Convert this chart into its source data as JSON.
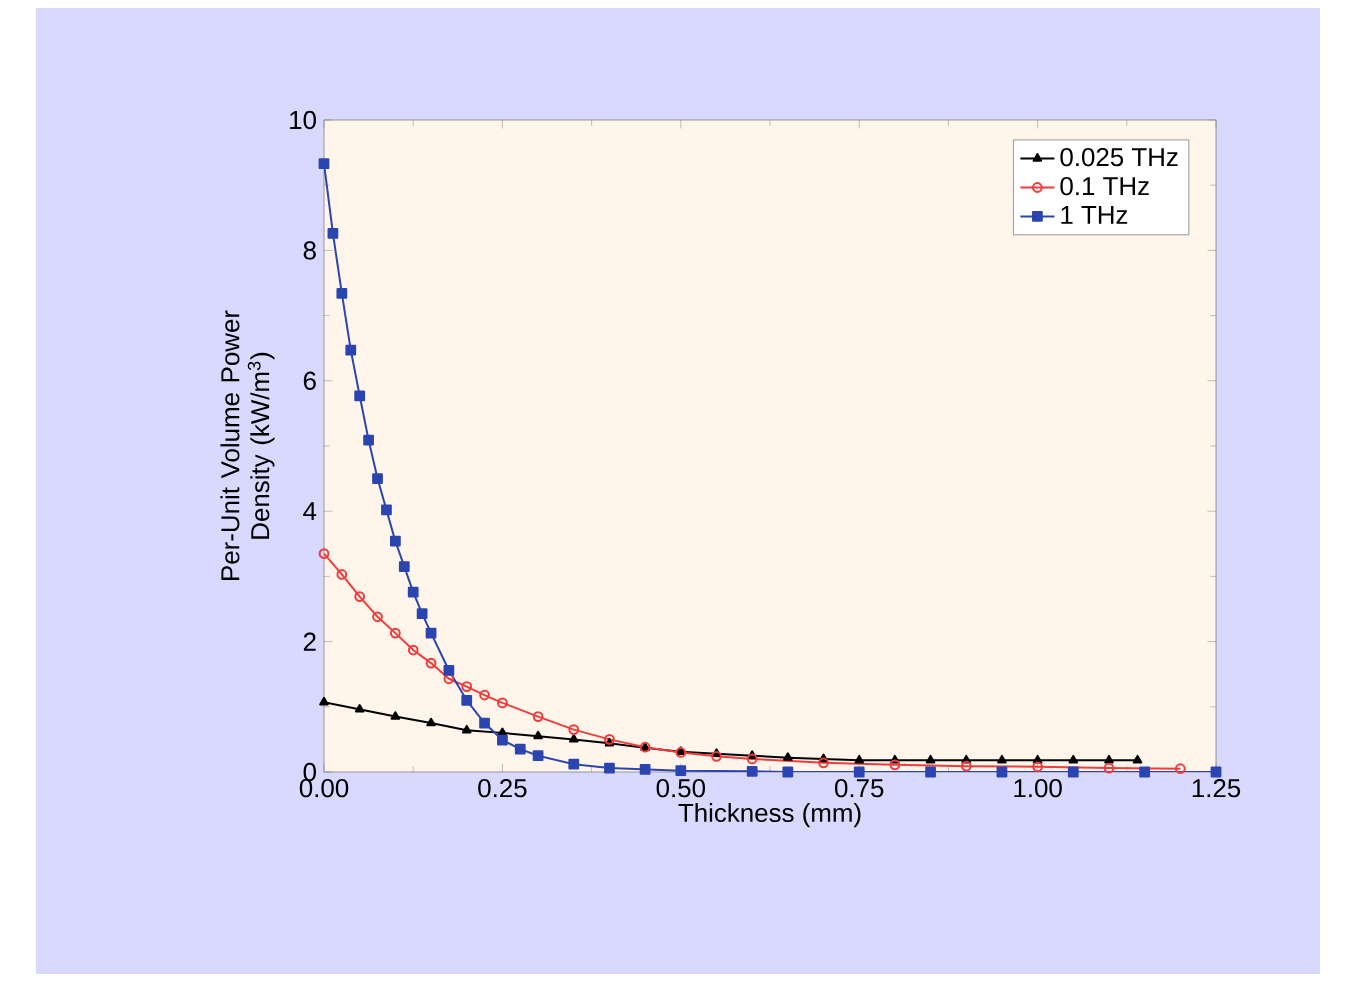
{
  "chart_data": {
    "type": "line",
    "xlabel": "Thickness (mm)",
    "ylabel": "Per-Unit Volume Power Density (kW/m$^{3}$)",
    "xlim": [
      0,
      1.25
    ],
    "ylim": [
      0,
      10
    ],
    "xticks": [
      {
        "value": 0,
        "label": "0.00"
      },
      {
        "value": 0.25,
        "label": "0.25"
      },
      {
        "value": 0.5,
        "label": "0.50"
      },
      {
        "value": 0.75,
        "label": "0.75"
      },
      {
        "value": 1,
        "label": "1.00"
      },
      {
        "value": 1.25,
        "label": "1.25"
      }
    ],
    "yticks": [
      0,
      2,
      4,
      6,
      8,
      10
    ],
    "legend": "top right",
    "grid": false,
    "series": [
      {
        "name": "0.025 THz",
        "color": "#000000",
        "marker": "triangle",
        "x": [
          0,
          0.05,
          0.1,
          0.15,
          0.2,
          0.25,
          0.3,
          0.35,
          0.4,
          0.45,
          0.5,
          0.55,
          0.6,
          0.65,
          0.7,
          0.75,
          0.8,
          0.85,
          0.9,
          0.95,
          1,
          1.05,
          1.1,
          1.14
        ],
        "values": [
          1.07,
          0.96,
          0.85,
          0.75,
          0.64,
          0.6,
          0.55,
          0.5,
          0.44,
          0.37,
          0.31,
          0.28,
          0.25,
          0.22,
          0.2,
          0.18,
          0.18,
          0.18,
          0.18,
          0.18,
          0.18,
          0.18,
          0.18,
          0.18
        ]
      },
      {
        "name": "0.1 THz",
        "color": "#f03c3c",
        "marker": "circle",
        "x": [
          0,
          0.025,
          0.05,
          0.075,
          0.1,
          0.125,
          0.15,
          0.175,
          0.2,
          0.225,
          0.25,
          0.3,
          0.35,
          0.4,
          0.45,
          0.5,
          0.55,
          0.6,
          0.7,
          0.8,
          0.9,
          1,
          1.1,
          1.2
        ],
        "values": [
          3.35,
          3.03,
          2.69,
          2.38,
          2.13,
          1.87,
          1.67,
          1.43,
          1.31,
          1.18,
          1.06,
          0.85,
          0.65,
          0.5,
          0.38,
          0.3,
          0.24,
          0.2,
          0.14,
          0.11,
          0.09,
          0.08,
          0.06,
          0.05
        ]
      },
      {
        "name": "1 THz",
        "color": "#2b45b0",
        "marker": "square",
        "x": [
          0,
          0.0125,
          0.025,
          0.0375,
          0.05,
          0.0625,
          0.075,
          0.0875,
          0.1,
          0.1125,
          0.125,
          0.1375,
          0.15,
          0.175,
          0.2,
          0.225,
          0.25,
          0.275,
          0.3,
          0.35,
          0.4,
          0.45,
          0.5,
          0.6,
          0.65,
          0.75,
          0.85,
          0.95,
          1.05,
          1.15,
          1.25
        ],
        "values": [
          9.33,
          8.26,
          7.34,
          6.47,
          5.77,
          5.09,
          4.5,
          4.02,
          3.54,
          3.15,
          2.76,
          2.43,
          2.13,
          1.56,
          1.1,
          0.75,
          0.49,
          0.35,
          0.25,
          0.12,
          0.06,
          0.04,
          0.02,
          0.01,
          0,
          0,
          0,
          0,
          0,
          0,
          0
        ]
      }
    ]
  }
}
